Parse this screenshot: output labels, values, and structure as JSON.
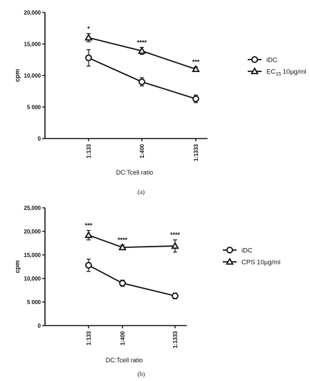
{
  "chart_data": [
    {
      "type": "line",
      "panel_label": "(a)",
      "xlabel": "DC:Tcell ratio",
      "ylabel": "cpm",
      "categories": [
        "1:133",
        "1:400",
        "1:1333"
      ],
      "ylim": [
        0,
        20000
      ],
      "yticks": [
        0,
        5000,
        10000,
        15000,
        20000
      ],
      "ytick_labels": [
        "0",
        "5 000",
        "10,000",
        "15,000",
        "20,000"
      ],
      "series": [
        {
          "name": "iDC",
          "name_sub": "",
          "name_rest": "",
          "marker": "circle",
          "values": [
            12800,
            9000,
            6300
          ],
          "errors": [
            1300,
            650,
            600
          ]
        },
        {
          "name": "EC",
          "name_sub": "15",
          "name_rest": " 10µg/ml",
          "marker": "triangle",
          "values": [
            16000,
            13900,
            11000
          ],
          "errors": [
            650,
            550,
            350
          ]
        }
      ],
      "annotations": [
        "*",
        "****",
        "***"
      ],
      "legend_position": "right"
    },
    {
      "type": "line",
      "panel_label": "(b)",
      "xlabel": "DC:Tcell ratio",
      "ylabel": "cpm",
      "categories": [
        "1:133",
        "1:400",
        "1:1333"
      ],
      "ylim": [
        0,
        25000
      ],
      "yticks": [
        0,
        5000,
        10000,
        15000,
        20000,
        25000
      ],
      "ytick_labels": [
        "0",
        "5 000",
        "10,000",
        "15,000",
        "20,000",
        "25,000"
      ],
      "series": [
        {
          "name": "iDC",
          "name_sub": "",
          "name_rest": "",
          "marker": "circle",
          "values": [
            12800,
            9000,
            6300
          ],
          "errors": [
            1300,
            650,
            600
          ]
        },
        {
          "name": "CPS 10µg/ml",
          "name_sub": "",
          "name_rest": "",
          "marker": "triangle",
          "values": [
            19200,
            16600,
            16900
          ],
          "errors": [
            1000,
            500,
            1300
          ]
        }
      ],
      "annotations": [
        "***",
        "****",
        "****"
      ],
      "legend_position": "right"
    }
  ]
}
